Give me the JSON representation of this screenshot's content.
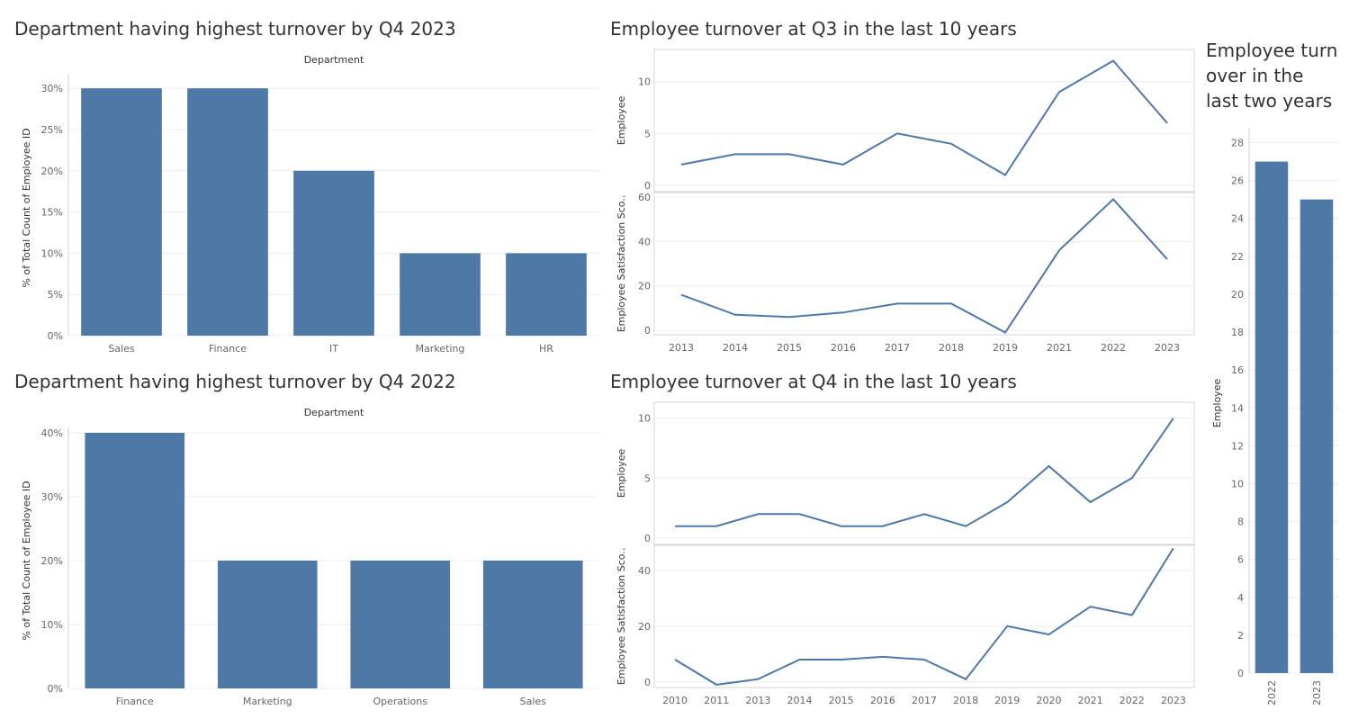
{
  "titles": {
    "dept_2023": "Department having highest turnover by Q4 2023",
    "dept_2022": "Department having highest turnover by Q4 2022",
    "q3": "Employee turnover at Q3 in the last 10 years",
    "q4": "Employee turnover at Q4 in the last 10 years",
    "two_years": "Employee turn over in the last two years"
  },
  "chart_data": [
    {
      "type": "bar",
      "title": "Department having highest turnover by Q4 2023",
      "xlabel": "Department",
      "ylabel": "% of Total Count of Employee ID",
      "categories": [
        "Sales",
        "Finance",
        "IT",
        "Marketing",
        "HR"
      ],
      "values": [
        30,
        30,
        20,
        10,
        10
      ],
      "yticks": [
        0,
        5,
        10,
        15,
        20,
        25,
        30
      ],
      "tick_suffix": "%",
      "ylim": [
        0,
        31
      ],
      "color": "#4e79a7"
    },
    {
      "type": "bar",
      "title": "Department having highest turnover by Q4 2022",
      "xlabel": "Department",
      "ylabel": "% of Total Count of Employee ID",
      "categories": [
        "Finance",
        "Marketing",
        "Operations",
        "Sales"
      ],
      "values": [
        40,
        20,
        20,
        20
      ],
      "yticks": [
        0,
        10,
        20,
        30,
        40
      ],
      "tick_suffix": "%",
      "ylim": [
        0,
        40
      ],
      "color": "#4e79a7"
    },
    {
      "type": "line",
      "title": "Employee turnover at Q3 in the last 10 years",
      "x": [
        "2013",
        "2014",
        "2015",
        "2016",
        "2017",
        "2018",
        "2019",
        "2021",
        "2022",
        "2023"
      ],
      "series": [
        {
          "name": "Employee",
          "values": [
            2,
            3,
            3,
            2,
            5,
            4,
            1,
            9,
            12,
            6
          ],
          "yticks": [
            0,
            5,
            10
          ],
          "ylim": [
            0,
            13
          ]
        },
        {
          "name": "Employee Satisfaction Sco..",
          "values": [
            16,
            7,
            6,
            8,
            12,
            12,
            -1,
            36,
            59,
            32
          ],
          "yticks": [
            0,
            20,
            40,
            60
          ],
          "ylim": [
            -2,
            62
          ]
        }
      ],
      "color": "#4e79a7"
    },
    {
      "type": "line",
      "title": "Employee turnover at Q4 in the last 10 years",
      "x": [
        "2010",
        "2011",
        "2013",
        "2014",
        "2015",
        "2016",
        "2017",
        "2018",
        "2019",
        "2020",
        "2021",
        "2022",
        "2023"
      ],
      "series": [
        {
          "name": "Employee",
          "values": [
            1,
            1,
            2,
            2,
            1,
            1,
            2,
            1,
            3,
            6,
            3,
            5,
            10
          ],
          "yticks": [
            0,
            5,
            10
          ],
          "ylim": [
            0,
            10.5
          ]
        },
        {
          "name": "Employee Satisfaction Sco..",
          "values": [
            8,
            -1,
            1,
            8,
            8,
            9,
            8,
            1,
            20,
            17,
            27,
            24,
            48
          ],
          "yticks": [
            0,
            20,
            40
          ],
          "ylim": [
            -2,
            49
          ]
        }
      ],
      "color": "#4e79a7"
    },
    {
      "type": "bar",
      "title": "Employee turn over in the last two years",
      "ylabel": "Employee",
      "categories": [
        "2022",
        "2023"
      ],
      "values": [
        27,
        25
      ],
      "yticks": [
        0,
        2,
        4,
        6,
        8,
        10,
        12,
        14,
        16,
        18,
        20,
        22,
        24,
        26,
        28
      ],
      "ylim": [
        0,
        28.5
      ],
      "color": "#4e79a7"
    }
  ]
}
